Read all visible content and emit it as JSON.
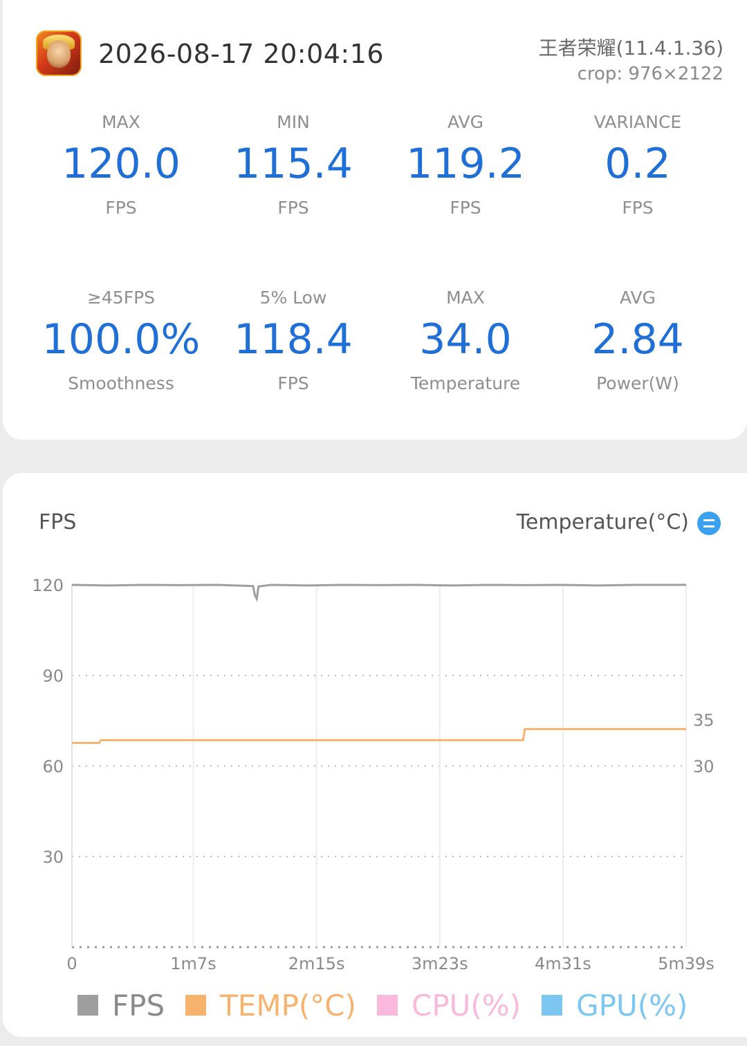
{
  "header": {
    "timestamp": "2026-08-17 20:04:16",
    "game": "王者荣耀(11.4.1.36)",
    "crop": "crop: 976×2122"
  },
  "stats": [
    {
      "label": "MAX",
      "value": "120.0",
      "unit": "FPS"
    },
    {
      "label": "MIN",
      "value": "115.4",
      "unit": "FPS"
    },
    {
      "label": "AVG",
      "value": "119.2",
      "unit": "FPS"
    },
    {
      "label": "VARIANCE",
      "value": "0.2",
      "unit": "FPS"
    },
    {
      "label": "≥45FPS",
      "value": "100.0%",
      "unit": "Smoothness"
    },
    {
      "label": "5% Low",
      "value": "118.4",
      "unit": "FPS"
    },
    {
      "label": "MAX",
      "value": "34.0",
      "unit": "Temperature"
    },
    {
      "label": "AVG",
      "value": "2.84",
      "unit": "Power(W)"
    }
  ],
  "colors": {
    "accent": "#1f6fd6",
    "fps": "#9e9e9e",
    "temp": "#f7b26e",
    "cpu": "#f9b8dc",
    "gpu": "#7cc6f2"
  },
  "chart_data": {
    "type": "line",
    "title": "FPS",
    "right_title": "Temperature(°C)",
    "x_ticks": [
      "0",
      "1m7s",
      "2m15s",
      "3m23s",
      "4m31s",
      "5m39s"
    ],
    "x_range_seconds": [
      0,
      339
    ],
    "y_left_ticks": [
      "30",
      "60",
      "90",
      "120"
    ],
    "y_left_range": [
      0,
      120
    ],
    "y_right_ticks": [
      "30",
      "35"
    ],
    "y_right_range": [
      30,
      35
    ],
    "grid": "dotted horizontal, solid vertical",
    "series": [
      {
        "name": "FPS",
        "axis": "left",
        "x": [
          0,
          20,
          40,
          60,
          80,
          100,
          101,
          102,
          103,
          110,
          130,
          150,
          170,
          190,
          210,
          230,
          250,
          270,
          290,
          310,
          339
        ],
        "y": [
          120,
          119.8,
          120,
          119.9,
          120,
          119.6,
          116.5,
          115.4,
          119.5,
          120,
          119.8,
          120,
          119.9,
          120,
          119.8,
          120,
          119.9,
          120,
          119.8,
          120,
          120
        ]
      },
      {
        "name": "TEMP(°C)",
        "axis": "right",
        "x": [
          0,
          15,
          16,
          249,
          250,
          339
        ],
        "y": [
          32.5,
          32.5,
          32.8,
          32.8,
          34.0,
          34.0
        ]
      },
      {
        "name": "CPU(%)",
        "axis": "left",
        "x": [],
        "y": []
      },
      {
        "name": "GPU(%)",
        "axis": "left",
        "x": [],
        "y": []
      }
    ]
  }
}
